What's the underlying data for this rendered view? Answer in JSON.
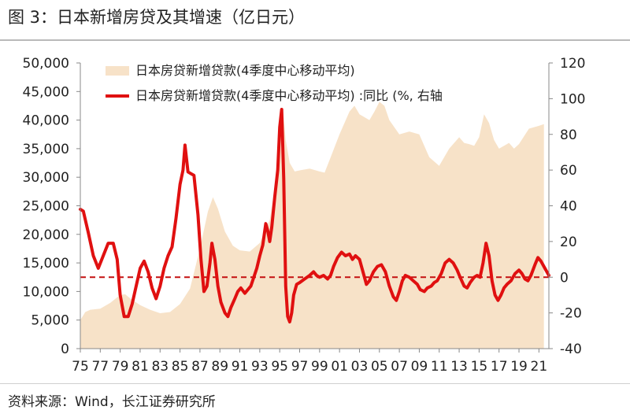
{
  "header": {
    "title": "图  3：日本新增房贷及其增速（亿日元）"
  },
  "footer": {
    "source": "资料来源：Wind，长江证券研究所"
  },
  "chart_data": {
    "type": "area",
    "title": "图  3：日本新增房贷及其增速（亿日元）",
    "grid": false,
    "legend_position": "top-left",
    "colors": {
      "area": "#f7e2c8",
      "line": "#e01010",
      "reference": "#c41010"
    },
    "x_ticks": [
      "75",
      "77",
      "79",
      "81",
      "83",
      "85",
      "87",
      "89",
      "91",
      "93",
      "95",
      "97",
      "99",
      "01",
      "03",
      "05",
      "07",
      "09",
      "11",
      "13",
      "15",
      "17",
      "19",
      "21"
    ],
    "y_left": {
      "min": 0,
      "max": 50000,
      "ticks": [
        "0",
        "5,000",
        "10,000",
        "15,000",
        "20,000",
        "25,000",
        "30,000",
        "35,000",
        "40,000",
        "45,000",
        "50,000"
      ]
    },
    "y_right": {
      "min": -40,
      "max": 120,
      "ticks": [
        "-40",
        "-20",
        "0",
        "20",
        "40",
        "60",
        "80",
        "100",
        "120"
      ]
    },
    "reference_line_right_axis": 0,
    "series": [
      {
        "name": "日本房贷新增贷款(4季度中心移动平均)",
        "kind": "area",
        "axis": "left",
        "points": [
          [
            1975.0,
            5000
          ],
          [
            1975.5,
            6400
          ],
          [
            1976.0,
            6800
          ],
          [
            1977.0,
            7000
          ],
          [
            1978.0,
            8000
          ],
          [
            1979.0,
            9400
          ],
          [
            1979.5,
            9500
          ],
          [
            1980.0,
            8800
          ],
          [
            1981.0,
            7600
          ],
          [
            1982.0,
            6800
          ],
          [
            1983.0,
            6200
          ],
          [
            1984.0,
            6400
          ],
          [
            1985.0,
            7800
          ],
          [
            1986.0,
            10500
          ],
          [
            1987.0,
            17500
          ],
          [
            1987.8,
            24000
          ],
          [
            1988.3,
            26500
          ],
          [
            1988.8,
            24500
          ],
          [
            1989.5,
            20500
          ],
          [
            1990.3,
            18000
          ],
          [
            1991.0,
            17200
          ],
          [
            1992.0,
            17000
          ],
          [
            1993.0,
            18500
          ],
          [
            1994.0,
            22500
          ],
          [
            1994.5,
            28000
          ],
          [
            1995.0,
            39000
          ],
          [
            1995.3,
            42200
          ],
          [
            1995.6,
            36500
          ],
          [
            1996.0,
            32500
          ],
          [
            1996.5,
            31000
          ],
          [
            1997.0,
            31200
          ],
          [
            1998.0,
            31500
          ],
          [
            1999.0,
            31000
          ],
          [
            1999.5,
            30800
          ],
          [
            2000.0,
            33000
          ],
          [
            2001.0,
            37500
          ],
          [
            2002.0,
            41500
          ],
          [
            2002.5,
            42500
          ],
          [
            2003.0,
            41000
          ],
          [
            2004.0,
            40000
          ],
          [
            2004.5,
            41500
          ],
          [
            2005.0,
            43200
          ],
          [
            2005.5,
            42500
          ],
          [
            2006.0,
            40000
          ],
          [
            2007.0,
            37500
          ],
          [
            2008.0,
            38000
          ],
          [
            2009.0,
            37500
          ],
          [
            2010.0,
            33500
          ],
          [
            2011.0,
            32000
          ],
          [
            2012.0,
            35000
          ],
          [
            2013.0,
            37000
          ],
          [
            2013.5,
            36000
          ],
          [
            2014.0,
            35800
          ],
          [
            2014.5,
            35500
          ],
          [
            2015.0,
            37000
          ],
          [
            2015.5,
            41000
          ],
          [
            2016.0,
            39500
          ],
          [
            2016.5,
            36500
          ],
          [
            2017.0,
            35000
          ],
          [
            2018.0,
            36000
          ],
          [
            2018.5,
            35000
          ],
          [
            2019.0,
            35800
          ],
          [
            2020.0,
            38500
          ],
          [
            2021.0,
            39000
          ],
          [
            2021.5,
            39300
          ]
        ]
      },
      {
        "name": "日本房贷新增贷款(4季度中心移动平均) :同比 (%, 右轴",
        "kind": "line",
        "axis": "right",
        "points": [
          [
            1975.0,
            38
          ],
          [
            1975.3,
            37
          ],
          [
            1975.8,
            25
          ],
          [
            1976.3,
            12
          ],
          [
            1976.8,
            5
          ],
          [
            1977.3,
            12
          ],
          [
            1977.8,
            19
          ],
          [
            1978.3,
            19
          ],
          [
            1978.7,
            10
          ],
          [
            1979.0,
            -10
          ],
          [
            1979.4,
            -22
          ],
          [
            1979.8,
            -22
          ],
          [
            1980.2,
            -15
          ],
          [
            1980.6,
            -5
          ],
          [
            1981.0,
            5
          ],
          [
            1981.4,
            9
          ],
          [
            1981.8,
            3
          ],
          [
            1982.2,
            -6
          ],
          [
            1982.6,
            -12
          ],
          [
            1983.0,
            -5
          ],
          [
            1983.4,
            5
          ],
          [
            1983.8,
            12
          ],
          [
            1984.2,
            17
          ],
          [
            1984.6,
            33
          ],
          [
            1985.0,
            52
          ],
          [
            1985.3,
            60
          ],
          [
            1985.5,
            74
          ],
          [
            1985.8,
            59
          ],
          [
            1986.1,
            58
          ],
          [
            1986.4,
            57
          ],
          [
            1986.8,
            35
          ],
          [
            1987.1,
            10
          ],
          [
            1987.4,
            -8
          ],
          [
            1987.7,
            -5
          ],
          [
            1988.0,
            8
          ],
          [
            1988.2,
            19
          ],
          [
            1988.5,
            10
          ],
          [
            1988.8,
            -5
          ],
          [
            1989.1,
            -14
          ],
          [
            1989.5,
            -20
          ],
          [
            1989.8,
            -22
          ],
          [
            1990.1,
            -17
          ],
          [
            1990.5,
            -12
          ],
          [
            1990.8,
            -8
          ],
          [
            1991.1,
            -6
          ],
          [
            1991.5,
            -9
          ],
          [
            1991.8,
            -7
          ],
          [
            1992.1,
            -5
          ],
          [
            1992.4,
            0
          ],
          [
            1992.7,
            5
          ],
          [
            1993.0,
            12
          ],
          [
            1993.3,
            18
          ],
          [
            1993.6,
            30
          ],
          [
            1993.8,
            26
          ],
          [
            1994.0,
            20
          ],
          [
            1994.2,
            28
          ],
          [
            1994.5,
            45
          ],
          [
            1994.8,
            60
          ],
          [
            1995.0,
            84
          ],
          [
            1995.2,
            94
          ],
          [
            1995.4,
            55
          ],
          [
            1995.6,
            -5
          ],
          [
            1995.8,
            -22
          ],
          [
            1996.0,
            -25
          ],
          [
            1996.2,
            -20
          ],
          [
            1996.4,
            -10
          ],
          [
            1996.7,
            -4
          ],
          [
            1997.0,
            -3
          ],
          [
            1997.5,
            -1
          ],
          [
            1998.0,
            1
          ],
          [
            1998.4,
            3
          ],
          [
            1998.7,
            1
          ],
          [
            1999.0,
            0
          ],
          [
            1999.4,
            1
          ],
          [
            1999.8,
            -1
          ],
          [
            2000.1,
            1
          ],
          [
            2000.4,
            6
          ],
          [
            2000.8,
            11
          ],
          [
            2001.2,
            14
          ],
          [
            2001.6,
            12
          ],
          [
            2002.0,
            13
          ],
          [
            2002.3,
            10
          ],
          [
            2002.6,
            12
          ],
          [
            2003.0,
            10
          ],
          [
            2003.3,
            4
          ],
          [
            2003.7,
            -4
          ],
          [
            2004.0,
            -2
          ],
          [
            2004.4,
            3
          ],
          [
            2004.8,
            6
          ],
          [
            2005.2,
            7
          ],
          [
            2005.6,
            3
          ],
          [
            2006.0,
            -5
          ],
          [
            2006.4,
            -11
          ],
          [
            2006.7,
            -13
          ],
          [
            2007.0,
            -8
          ],
          [
            2007.3,
            -2
          ],
          [
            2007.6,
            1
          ],
          [
            2008.0,
            0
          ],
          [
            2008.4,
            -2
          ],
          [
            2008.8,
            -4
          ],
          [
            2009.1,
            -7
          ],
          [
            2009.5,
            -8
          ],
          [
            2009.8,
            -6
          ],
          [
            2010.2,
            -5
          ],
          [
            2010.5,
            -3
          ],
          [
            2010.8,
            -2
          ],
          [
            2011.2,
            2
          ],
          [
            2011.6,
            8
          ],
          [
            2012.0,
            10
          ],
          [
            2012.4,
            8
          ],
          [
            2012.8,
            4
          ],
          [
            2013.1,
            0
          ],
          [
            2013.5,
            -5
          ],
          [
            2013.8,
            -6
          ],
          [
            2014.1,
            -3
          ],
          [
            2014.5,
            0
          ],
          [
            2014.8,
            1
          ],
          [
            2015.1,
            0
          ],
          [
            2015.4,
            8
          ],
          [
            2015.7,
            19
          ],
          [
            2016.0,
            12
          ],
          [
            2016.3,
            -2
          ],
          [
            2016.6,
            -10
          ],
          [
            2016.9,
            -13
          ],
          [
            2017.2,
            -10
          ],
          [
            2017.5,
            -6
          ],
          [
            2017.8,
            -4
          ],
          [
            2018.2,
            -2
          ],
          [
            2018.6,
            2
          ],
          [
            2019.0,
            4
          ],
          [
            2019.3,
            2
          ],
          [
            2019.6,
            -1
          ],
          [
            2019.9,
            -2
          ],
          [
            2020.2,
            1
          ],
          [
            2020.6,
            7
          ],
          [
            2020.9,
            11
          ],
          [
            2021.2,
            9
          ],
          [
            2021.6,
            5
          ],
          [
            2022.0,
            1
          ]
        ]
      }
    ]
  }
}
